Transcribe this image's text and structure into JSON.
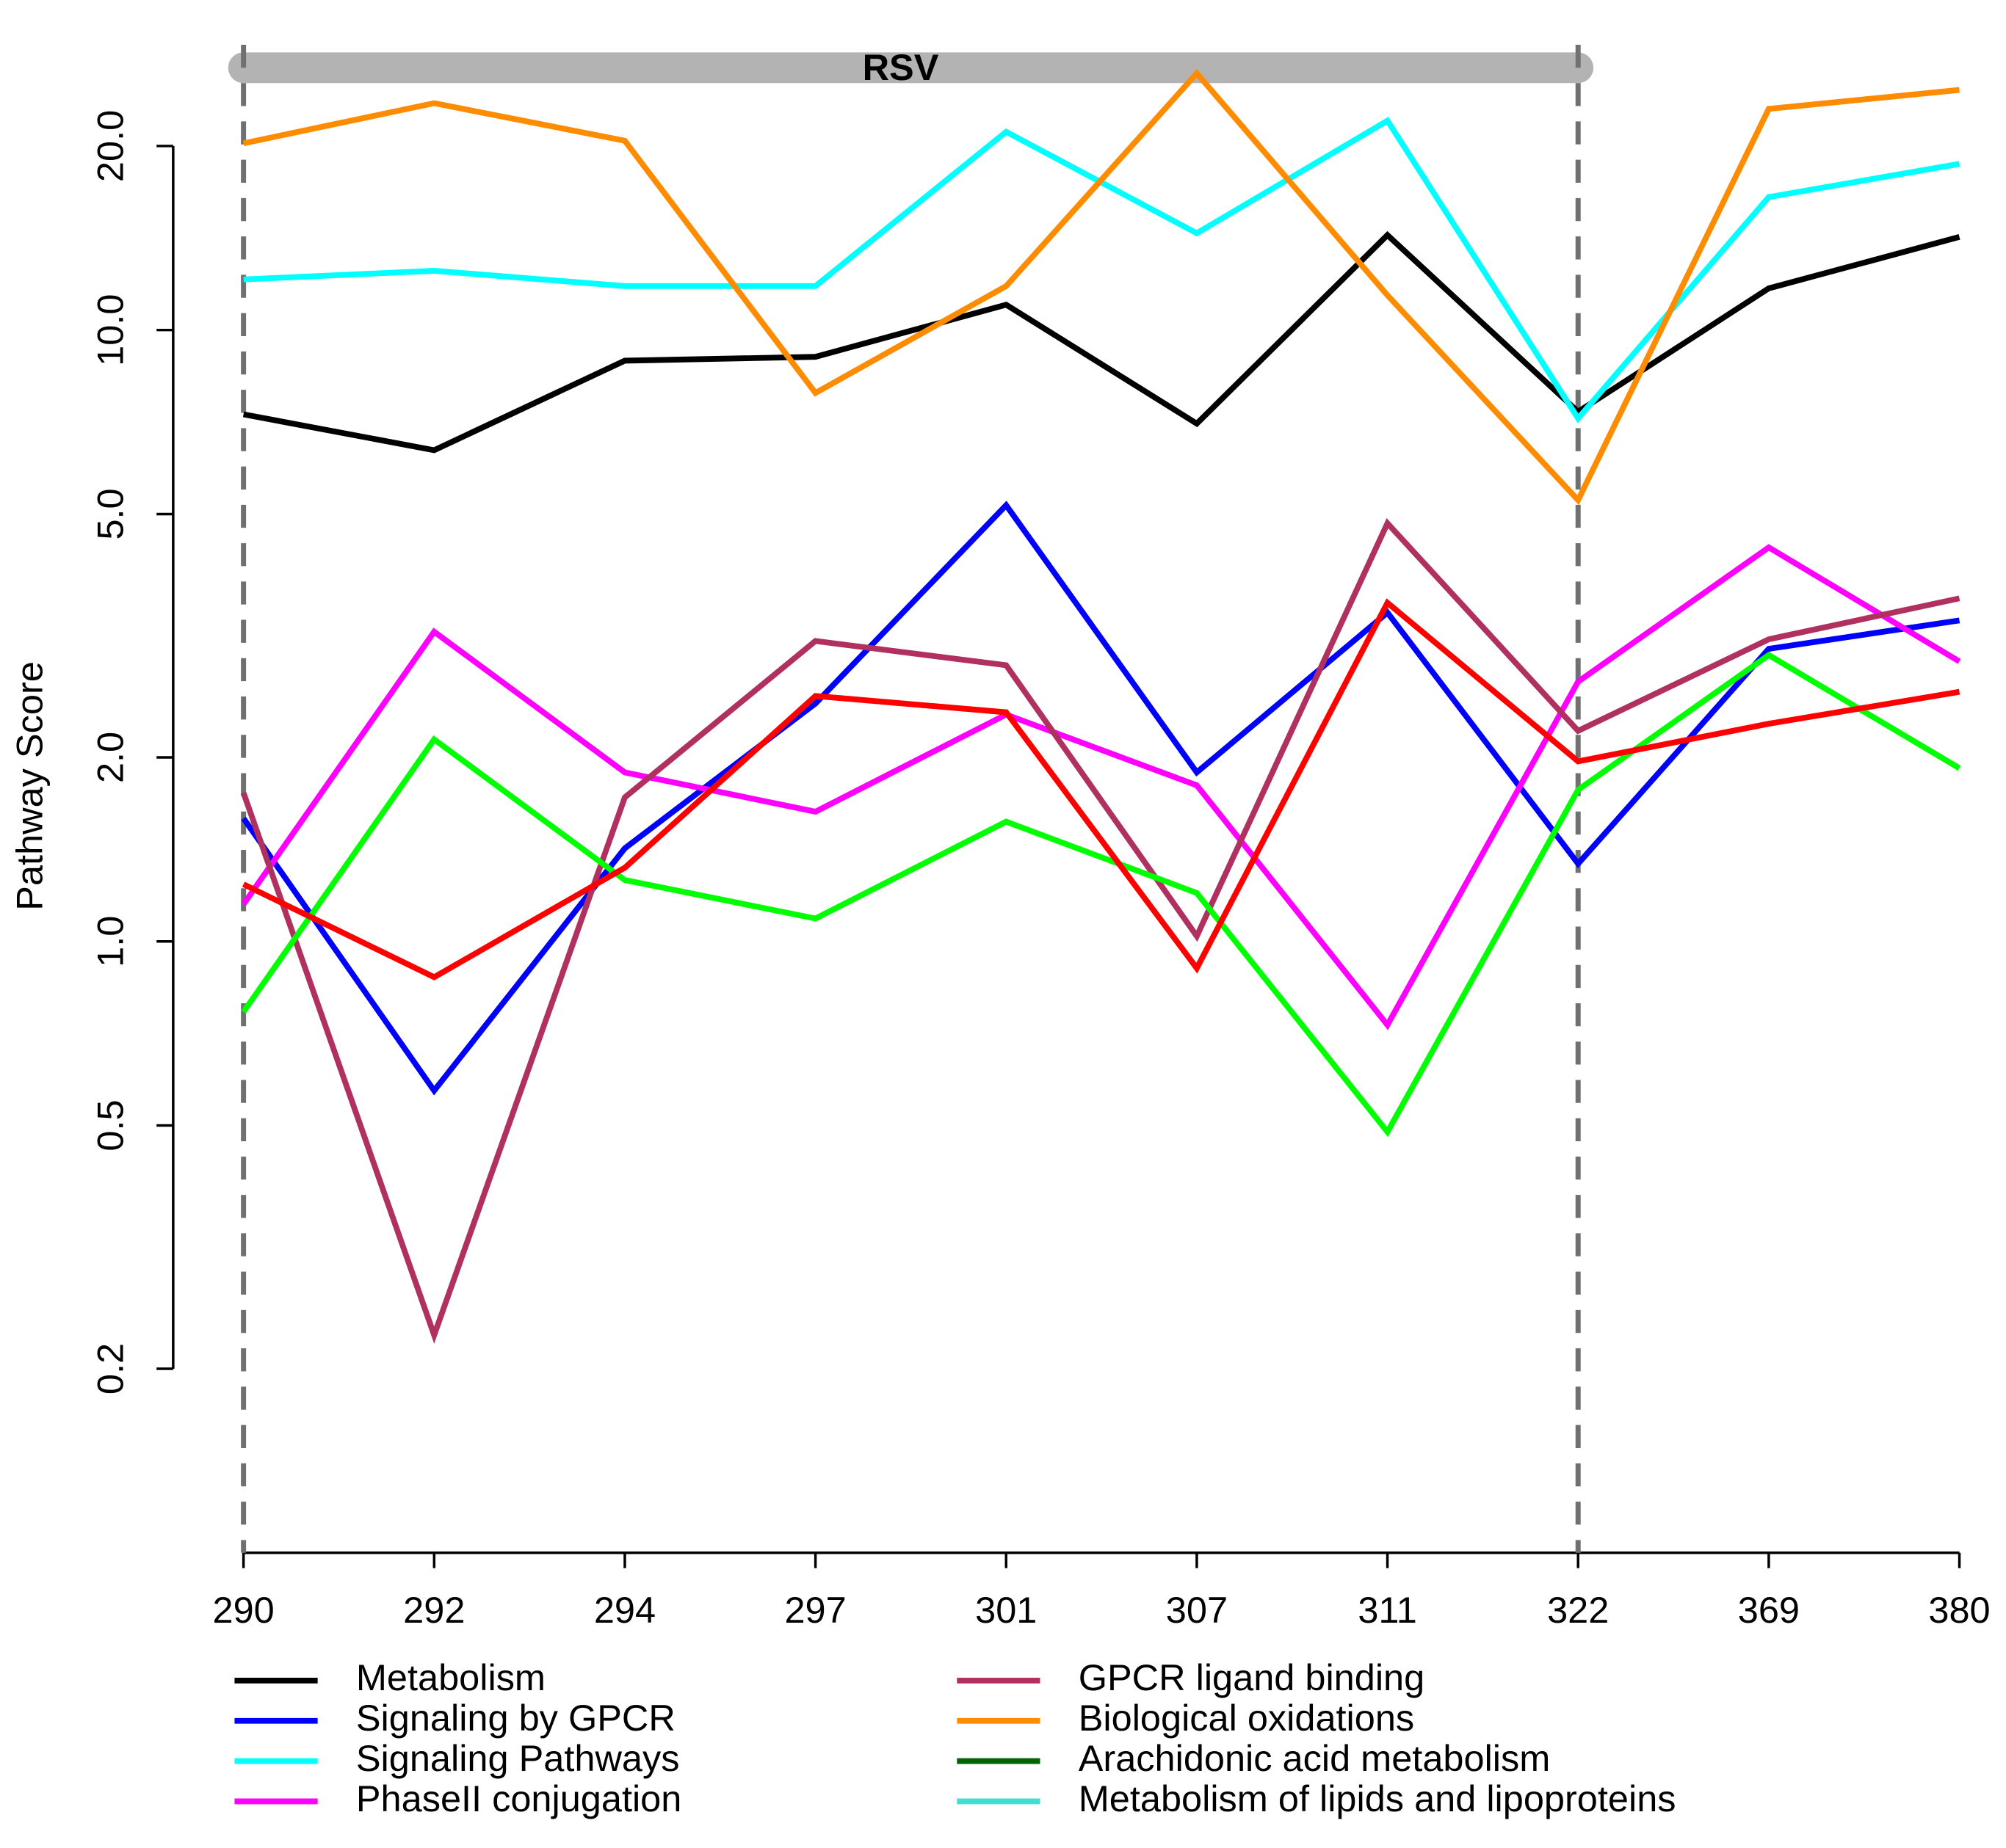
{
  "chart_data": {
    "type": "line",
    "y_label": "Pathway Score",
    "log_y": true,
    "categories": [
      "290",
      "292",
      "294",
      "297",
      "301",
      "307",
      "311",
      "322",
      "369",
      "380"
    ],
    "ylim": [
      0.1,
      30
    ],
    "yticks": [
      0.2,
      0.5,
      {
        "value": 1,
        "label": "1.0"
      },
      {
        "value": 2,
        "label": "2.0"
      },
      {
        "value": 5,
        "label": "5.0"
      },
      {
        "value": 10,
        "label": "10.0"
      },
      {
        "value": 20,
        "label": "20.0"
      }
    ],
    "regions": [
      {
        "label": "RSV",
        "start": "290",
        "end": "322",
        "color": "#b3b3b3",
        "label_color": "#1a6b1a"
      }
    ],
    "series": [
      {
        "name": "Metabolism",
        "color": "#000000",
        "legend_color": "#000000",
        "values": [
          7.28,
          6.36,
          8.91,
          9.04,
          11.0,
          7.03,
          14.3,
          7.35,
          11.7,
          14.2
        ]
      },
      {
        "name": "Signaling by GPCR",
        "color": "#0000ff",
        "legend_color": "#0000ff",
        "values": [
          1.59,
          0.57,
          1.42,
          2.45,
          5.17,
          1.89,
          3.45,
          1.34,
          3.01,
          3.35
        ]
      },
      {
        "name": "Signaling Pathways",
        "color": "#00ffff",
        "legend_color": "#00ffff",
        "values": [
          12.1,
          12.5,
          11.8,
          11.8,
          21.1,
          14.4,
          22.0,
          7.17,
          16.5,
          18.7
        ]
      },
      {
        "name": "PhaseII conjugation",
        "color": "#ff00ff",
        "legend_color": "#ff00ff",
        "values": [
          1.15,
          3.21,
          1.89,
          1.63,
          2.35,
          1.8,
          0.73,
          2.66,
          4.41,
          2.87
        ]
      },
      {
        "name": "GPCR ligand binding",
        "color": "#b03060",
        "legend_color": "#b03060",
        "values": [
          1.75,
          0.227,
          1.72,
          3.1,
          2.83,
          1.02,
          4.83,
          2.21,
          3.12,
          3.64
        ]
      },
      {
        "name": "Biological oxidations",
        "color": "#ff8c00",
        "legend_color": "#ff8c00",
        "values": [
          20.2,
          23.5,
          20.4,
          7.89,
          11.8,
          26.3,
          11.4,
          5.27,
          23.0,
          24.7
        ]
      },
      {
        "name": "Arachidonic acid metabolism",
        "color": "#00ff00",
        "legend_color": "#006400",
        "values": [
          0.767,
          2.14,
          1.26,
          1.09,
          1.57,
          1.2,
          0.488,
          1.77,
          2.94,
          1.92
        ]
      },
      {
        "name": "Metabolism of lipids and lipoproteins",
        "color": "#ff0000",
        "legend_color": "#40e0d0",
        "values": [
          1.24,
          0.874,
          1.32,
          2.52,
          2.37,
          0.904,
          3.58,
          1.97,
          2.27,
          2.56
        ]
      }
    ]
  }
}
